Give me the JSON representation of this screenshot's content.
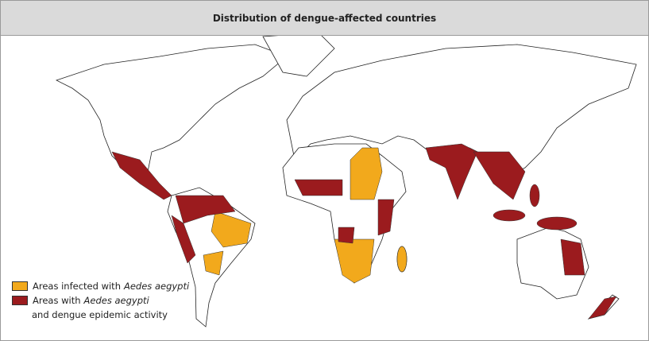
{
  "header": {
    "title": "Distribution of dengue-affected countries"
  },
  "legend": {
    "items": [
      {
        "text": "Areas infected with",
        "italic": "Aedes aegypti",
        "color": "#f2a91c"
      },
      {
        "text": "Areas with",
        "italic": "Aedes aegypti",
        "text2": "and dengue epidemic activity",
        "color": "#9b1b1e"
      }
    ]
  }
}
